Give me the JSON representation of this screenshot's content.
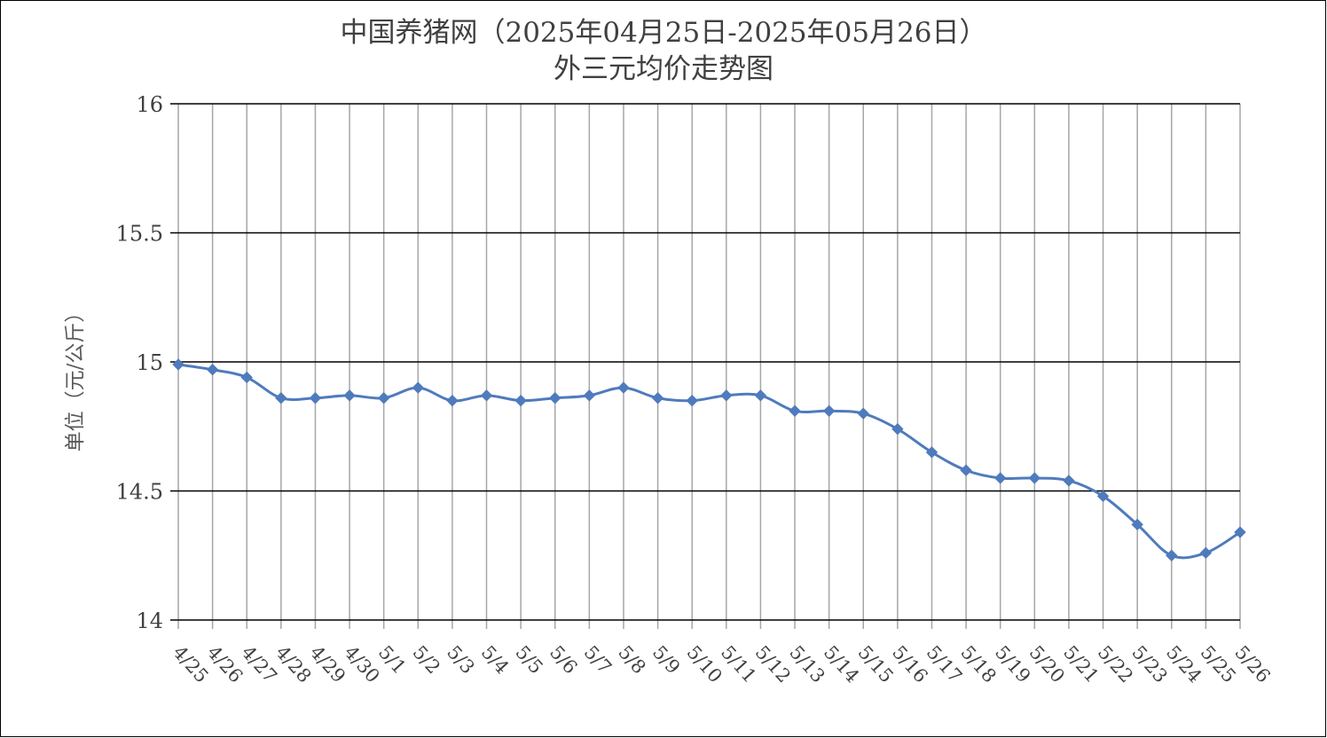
{
  "colors": {
    "series": "#4f7bbd",
    "hgrid": "#000000",
    "vgrid": "#a6a6a6",
    "text": "#404040"
  },
  "chart_data": {
    "type": "line",
    "title": "中国养猪网（2025年04月25日-2025年05月26日）",
    "subtitle": "外三元均价走势图",
    "xlabel": "",
    "ylabel": "单位（元/公斤）",
    "ylim": [
      14,
      16
    ],
    "yticks": [
      "14",
      "14.5",
      "15",
      "15.5",
      "16"
    ],
    "grid": true,
    "legend": "none",
    "marker": "diamond",
    "smooth": true,
    "categories": [
      "4/25",
      "4/26",
      "4/27",
      "4/28",
      "4/29",
      "4/30",
      "5/1",
      "5/2",
      "5/3",
      "5/4",
      "5/5",
      "5/6",
      "5/7",
      "5/8",
      "5/9",
      "5/10",
      "5/11",
      "5/12",
      "5/13",
      "5/14",
      "5/15",
      "5/16",
      "5/17",
      "5/18",
      "5/19",
      "5/20",
      "5/21",
      "5/22",
      "5/23",
      "5/24",
      "5/25",
      "5/26"
    ],
    "series": [
      {
        "values": [
          14.99,
          14.97,
          14.94,
          14.86,
          14.86,
          14.87,
          14.86,
          14.9,
          14.85,
          14.87,
          14.85,
          14.86,
          14.87,
          14.9,
          14.86,
          14.85,
          14.87,
          14.87,
          14.81,
          14.81,
          14.8,
          14.74,
          14.65,
          14.58,
          14.55,
          14.55,
          14.54,
          14.48,
          14.37,
          14.25,
          14.26,
          14.34
        ]
      }
    ]
  }
}
